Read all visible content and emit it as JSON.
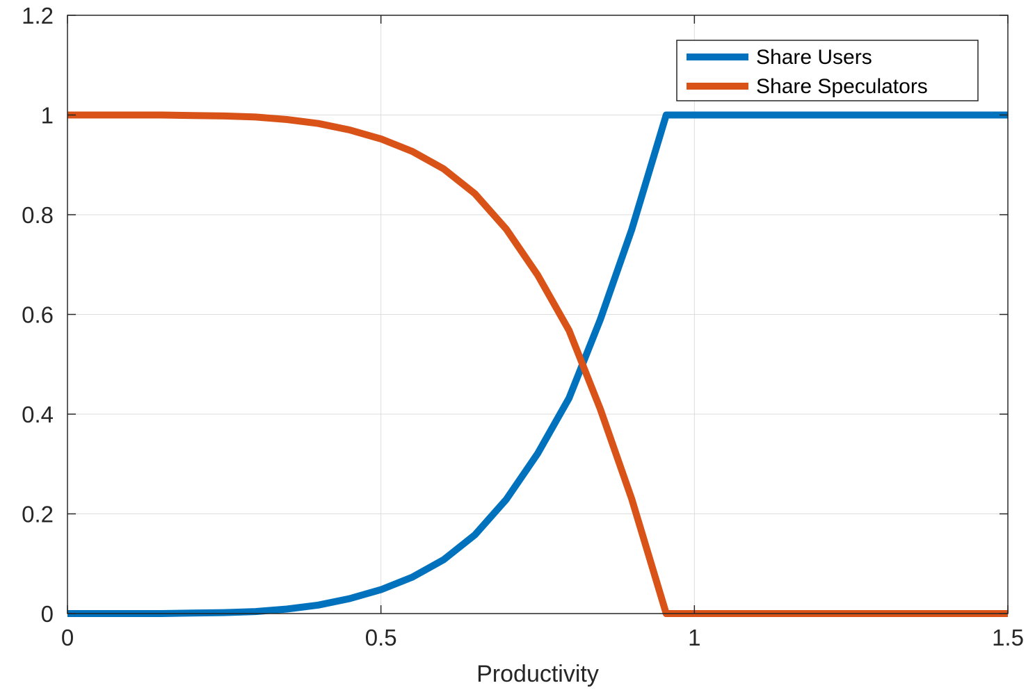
{
  "chart_data": {
    "type": "line",
    "title": "",
    "xlabel": "Productivity",
    "ylabel": "",
    "xlim": [
      0,
      1.5
    ],
    "ylim": [
      0,
      1.2
    ],
    "xticks": [
      "0",
      "0.5",
      "1",
      "1.5"
    ],
    "yticks": [
      "0",
      "0.2",
      "0.4",
      "0.6",
      "0.8",
      "1",
      "1.2"
    ],
    "grid": true,
    "legend_position": "top-right",
    "x": [
      0,
      0.05,
      0.1,
      0.15,
      0.2,
      0.25,
      0.3,
      0.35,
      0.4,
      0.45,
      0.5,
      0.55,
      0.6,
      0.65,
      0.7,
      0.75,
      0.8,
      0.85,
      0.9,
      0.955,
      1.0,
      1.05,
      1.1,
      1.15,
      1.2,
      1.25,
      1.3,
      1.35,
      1.4,
      1.45,
      1.5
    ],
    "series": [
      {
        "name": "Share Users",
        "color": "#0072BD",
        "values": [
          0,
          0,
          0,
          0,
          0.001,
          0.002,
          0.004,
          0.009,
          0.017,
          0.03,
          0.048,
          0.073,
          0.108,
          0.158,
          0.229,
          0.321,
          0.432,
          0.59,
          0.77,
          1,
          1,
          1,
          1,
          1,
          1,
          1,
          1,
          1,
          1,
          1,
          1
        ]
      },
      {
        "name": "Share Speculators",
        "color": "#D95319",
        "values": [
          1,
          1,
          1,
          1,
          0.999,
          0.998,
          0.996,
          0.991,
          0.983,
          0.97,
          0.952,
          0.927,
          0.892,
          0.842,
          0.771,
          0.679,
          0.568,
          0.41,
          0.23,
          0,
          0,
          0,
          0,
          0,
          0,
          0,
          0,
          0,
          0,
          0,
          0
        ]
      }
    ]
  }
}
